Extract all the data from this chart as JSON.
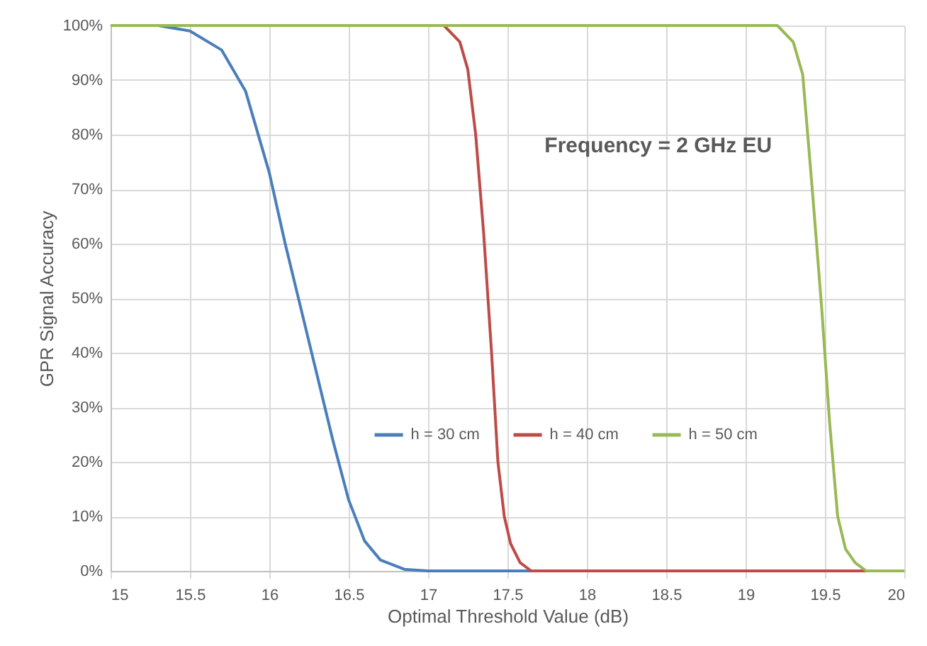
{
  "chart_data": {
    "type": "line",
    "xlabel": "Optimal Threshold Value (dB)",
    "ylabel": "GPR Signal Accuracy",
    "annotations": [
      "Frequency = 2 GHz EU"
    ],
    "series": [
      {
        "name": "h = 30 cm",
        "color": "#4a7ebb",
        "x": [
          15,
          15.3,
          15.5,
          15.7,
          15.85,
          16.0,
          16.1,
          16.2,
          16.3,
          16.4,
          16.5,
          16.6,
          16.7,
          16.85,
          17,
          20
        ],
        "values": [
          100,
          100,
          99,
          95.5,
          88,
          73,
          60,
          48,
          36,
          24,
          13,
          5.5,
          2,
          0.3,
          0,
          0
        ]
      },
      {
        "name": "h = 40 cm",
        "color": "#be4b48",
        "x": [
          15,
          17.1,
          17.2,
          17.25,
          17.3,
          17.35,
          17.4,
          17.44,
          17.48,
          17.52,
          17.58,
          17.65,
          20
        ],
        "values": [
          100,
          100,
          97,
          92,
          80,
          62,
          40,
          20,
          10,
          5,
          1.5,
          0,
          0
        ]
      },
      {
        "name": "h = 50 cm",
        "color": "#98b954",
        "x": [
          15,
          19.2,
          19.3,
          19.36,
          19.42,
          19.48,
          19.53,
          19.58,
          19.63,
          19.69,
          19.76,
          20
        ],
        "values": [
          100,
          100,
          97,
          91,
          70,
          48,
          27,
          10,
          4,
          1.5,
          0,
          0
        ]
      }
    ],
    "xlim": [
      15,
      20
    ],
    "xticks": [
      15,
      15.5,
      16,
      16.5,
      17,
      17.5,
      18,
      18.5,
      19,
      19.5,
      20
    ],
    "ylim": [
      0,
      100
    ],
    "yticks": [
      {
        "value": 0,
        "label": "0%"
      },
      {
        "value": 10,
        "label": "10%"
      },
      {
        "value": 20,
        "label": "20%"
      },
      {
        "value": 30,
        "label": "30%"
      },
      {
        "value": 40,
        "label": "40%"
      },
      {
        "value": 50,
        "label": "50%"
      },
      {
        "value": 60,
        "label": "60%"
      },
      {
        "value": 70,
        "label": "70%"
      },
      {
        "value": 80,
        "label": "80%"
      },
      {
        "value": 90,
        "label": "90%"
      },
      {
        "value": 100,
        "label": "100%"
      }
    ],
    "grid": true,
    "legend": "bottom",
    "marker": "none",
    "line_style": "solid"
  }
}
